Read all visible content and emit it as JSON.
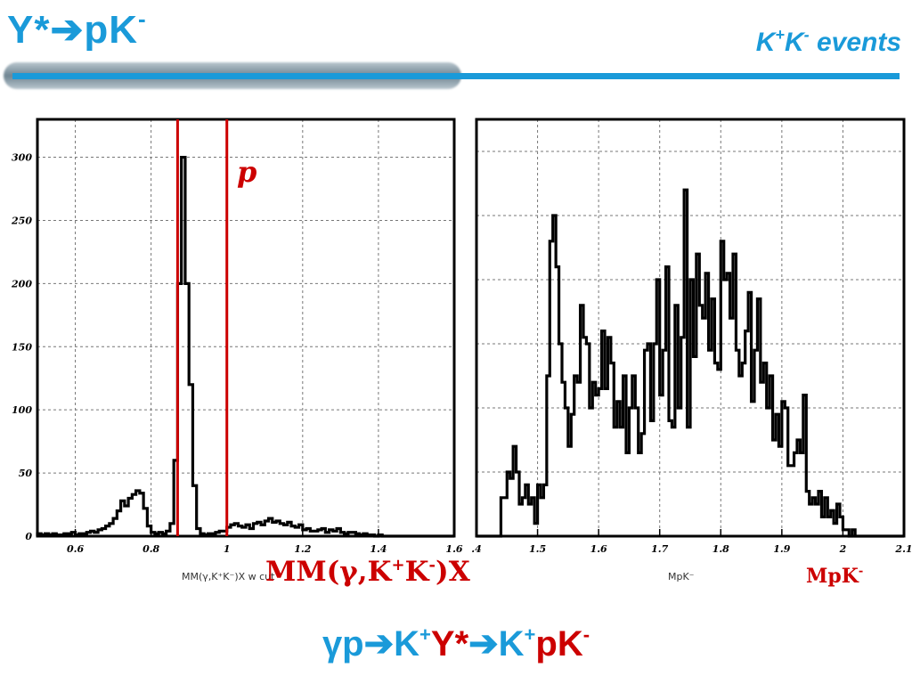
{
  "slide": {
    "title_main": "Y*",
    "title_arrow": "➔",
    "title_rest": "pK",
    "title_sup": "-",
    "subtitle_k1": "K",
    "subtitle_sup1": "+",
    "subtitle_k2": "K",
    "subtitle_sup2": "-",
    "subtitle_rest": " events",
    "bottom_gamma": "γp",
    "bottom_arrow1": "➔",
    "bottom_k1": "K",
    "bottom_sup1": "+",
    "bottom_y": "Y*",
    "bottom_arrow2": "➔",
    "bottom_k2": "K",
    "bottom_sup2": "+",
    "bottom_pk": "pK",
    "bottom_sup3": "-"
  },
  "colors": {
    "accent": "#1a9ad9",
    "red": "#cc0000",
    "bar": "#000000"
  },
  "left_labels": {
    "peak_label": "p",
    "root_xlabel": "MM(γ,K⁺K⁻)X  w  cut",
    "red_xlabel": "MM(γ,K+K-)X"
  },
  "right_labels": {
    "root_xlabel": "MpK⁻",
    "red_xlabel": "MpK-"
  },
  "chart_data": [
    {
      "type": "histogram",
      "xlabel": "MM(γ,K⁺K⁻)X",
      "xlim": [
        0.5,
        1.6
      ],
      "ylim": [
        0,
        330
      ],
      "xticks": [
        "0.6",
        "0.8",
        "1",
        "1.2",
        "1.4",
        "1.6"
      ],
      "yticks": [
        "0",
        "50",
        "100",
        "150",
        "200",
        "250",
        "300"
      ],
      "grid": true,
      "cut_lines": [
        0.87,
        1.0
      ],
      "bin_width": 0.01,
      "x_start": 0.5,
      "values": [
        2,
        1,
        2,
        1,
        2,
        1,
        1,
        2,
        2,
        3,
        1,
        2,
        2,
        3,
        4,
        3,
        5,
        6,
        8,
        10,
        14,
        20,
        28,
        24,
        30,
        33,
        36,
        34,
        22,
        8,
        3,
        2,
        3,
        2,
        4,
        10,
        60,
        200,
        300,
        200,
        120,
        40,
        6,
        2,
        1,
        2,
        2,
        3,
        4,
        4,
        7,
        9,
        10,
        8,
        7,
        9,
        6,
        10,
        11,
        9,
        12,
        14,
        11,
        12,
        10,
        9,
        11,
        8,
        7,
        9,
        5,
        6,
        4,
        4,
        5,
        6,
        3,
        5,
        4,
        6,
        3,
        2,
        3,
        3,
        2,
        1,
        2,
        1,
        1,
        0,
        1,
        0,
        0,
        0,
        0,
        0,
        0,
        0,
        0,
        0,
        0,
        0,
        0,
        0,
        0,
        0,
        0,
        0,
        0,
        0
      ]
    },
    {
      "type": "histogram",
      "xlabel": "MpK⁻",
      "xlim": [
        1.4,
        2.1
      ],
      "ylim": [
        0,
        65
      ],
      "xticks": [
        ".4",
        "1.5",
        "1.6",
        "1.7",
        "1.8",
        "1.9",
        "2",
        "2.1"
      ],
      "grid": true,
      "bin_width": 0.005,
      "x_start": 1.4,
      "values": [
        0,
        0,
        0,
        0,
        0,
        0,
        0,
        0,
        6,
        6,
        10,
        9,
        14,
        10,
        5,
        6,
        8,
        5,
        6,
        2,
        8,
        6,
        8,
        25,
        46,
        50,
        42,
        30,
        24,
        20,
        14,
        19,
        25,
        24,
        36,
        31,
        30,
        20,
        24,
        22,
        23,
        32,
        23,
        31,
        27,
        17,
        21,
        17,
        25,
        13,
        20,
        25,
        20,
        13,
        16,
        29,
        30,
        18,
        30,
        40,
        22,
        29,
        42,
        18,
        17,
        36,
        20,
        31,
        54,
        17,
        40,
        28,
        44,
        36,
        34,
        41,
        29,
        37,
        27,
        26,
        46,
        40,
        41,
        34,
        44,
        29,
        25,
        27,
        32,
        38,
        21,
        29,
        37,
        24,
        27,
        20,
        25,
        15,
        19,
        14,
        21,
        20,
        11,
        11,
        13,
        15,
        13,
        22,
        7,
        5,
        6,
        5,
        7,
        3,
        6,
        3,
        4,
        2,
        5,
        3,
        1,
        1,
        0,
        1,
        0,
        0,
        0,
        0,
        0,
        0,
        0,
        0,
        0,
        0,
        0,
        0,
        0,
        0,
        0,
        0
      ]
    }
  ]
}
